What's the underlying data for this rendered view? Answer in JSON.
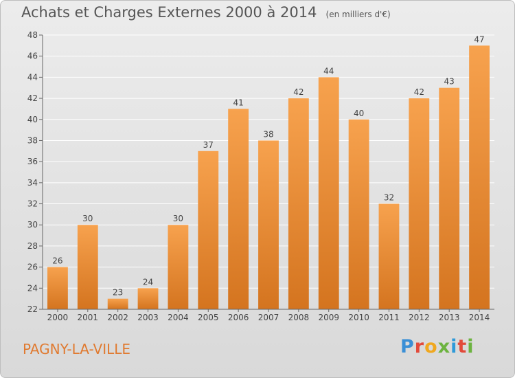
{
  "title": {
    "main": "Achats et Charges Externes 2000 à 2014",
    "unit": "(en milliers d'€)"
  },
  "commune": "PAGNY-LA-VILLE",
  "logo": {
    "letters": [
      "P",
      "r",
      "o",
      "x",
      "i",
      "t",
      "i"
    ],
    "colors": [
      "#3a8fd6",
      "#e24a3b",
      "#f0a81f",
      "#6cb33f",
      "#2f9ad8",
      "#e24a3b",
      "#6cb33f"
    ]
  },
  "colors": {
    "bar_top": "#f7a24e",
    "bar_bottom": "#d4741f",
    "grid": "#ffffff",
    "text": "#555555"
  },
  "chart_data": {
    "type": "bar",
    "title": "Achats et Charges Externes 2000 à 2014",
    "subtitle": "(en milliers d'€)",
    "categories": [
      "2000",
      "2001",
      "2002",
      "2003",
      "2004",
      "2005",
      "2006",
      "2007",
      "2008",
      "2009",
      "2010",
      "2011",
      "2012",
      "2013",
      "2014"
    ],
    "values": [
      26,
      30,
      23,
      24,
      30,
      37,
      41,
      38,
      42,
      44,
      40,
      32,
      42,
      43,
      47
    ],
    "ylim": [
      22,
      48
    ],
    "yticks": [
      22,
      24,
      26,
      28,
      30,
      32,
      34,
      36,
      38,
      40,
      42,
      44,
      46,
      48
    ],
    "grid": true,
    "xlabel": "",
    "ylabel": ""
  }
}
